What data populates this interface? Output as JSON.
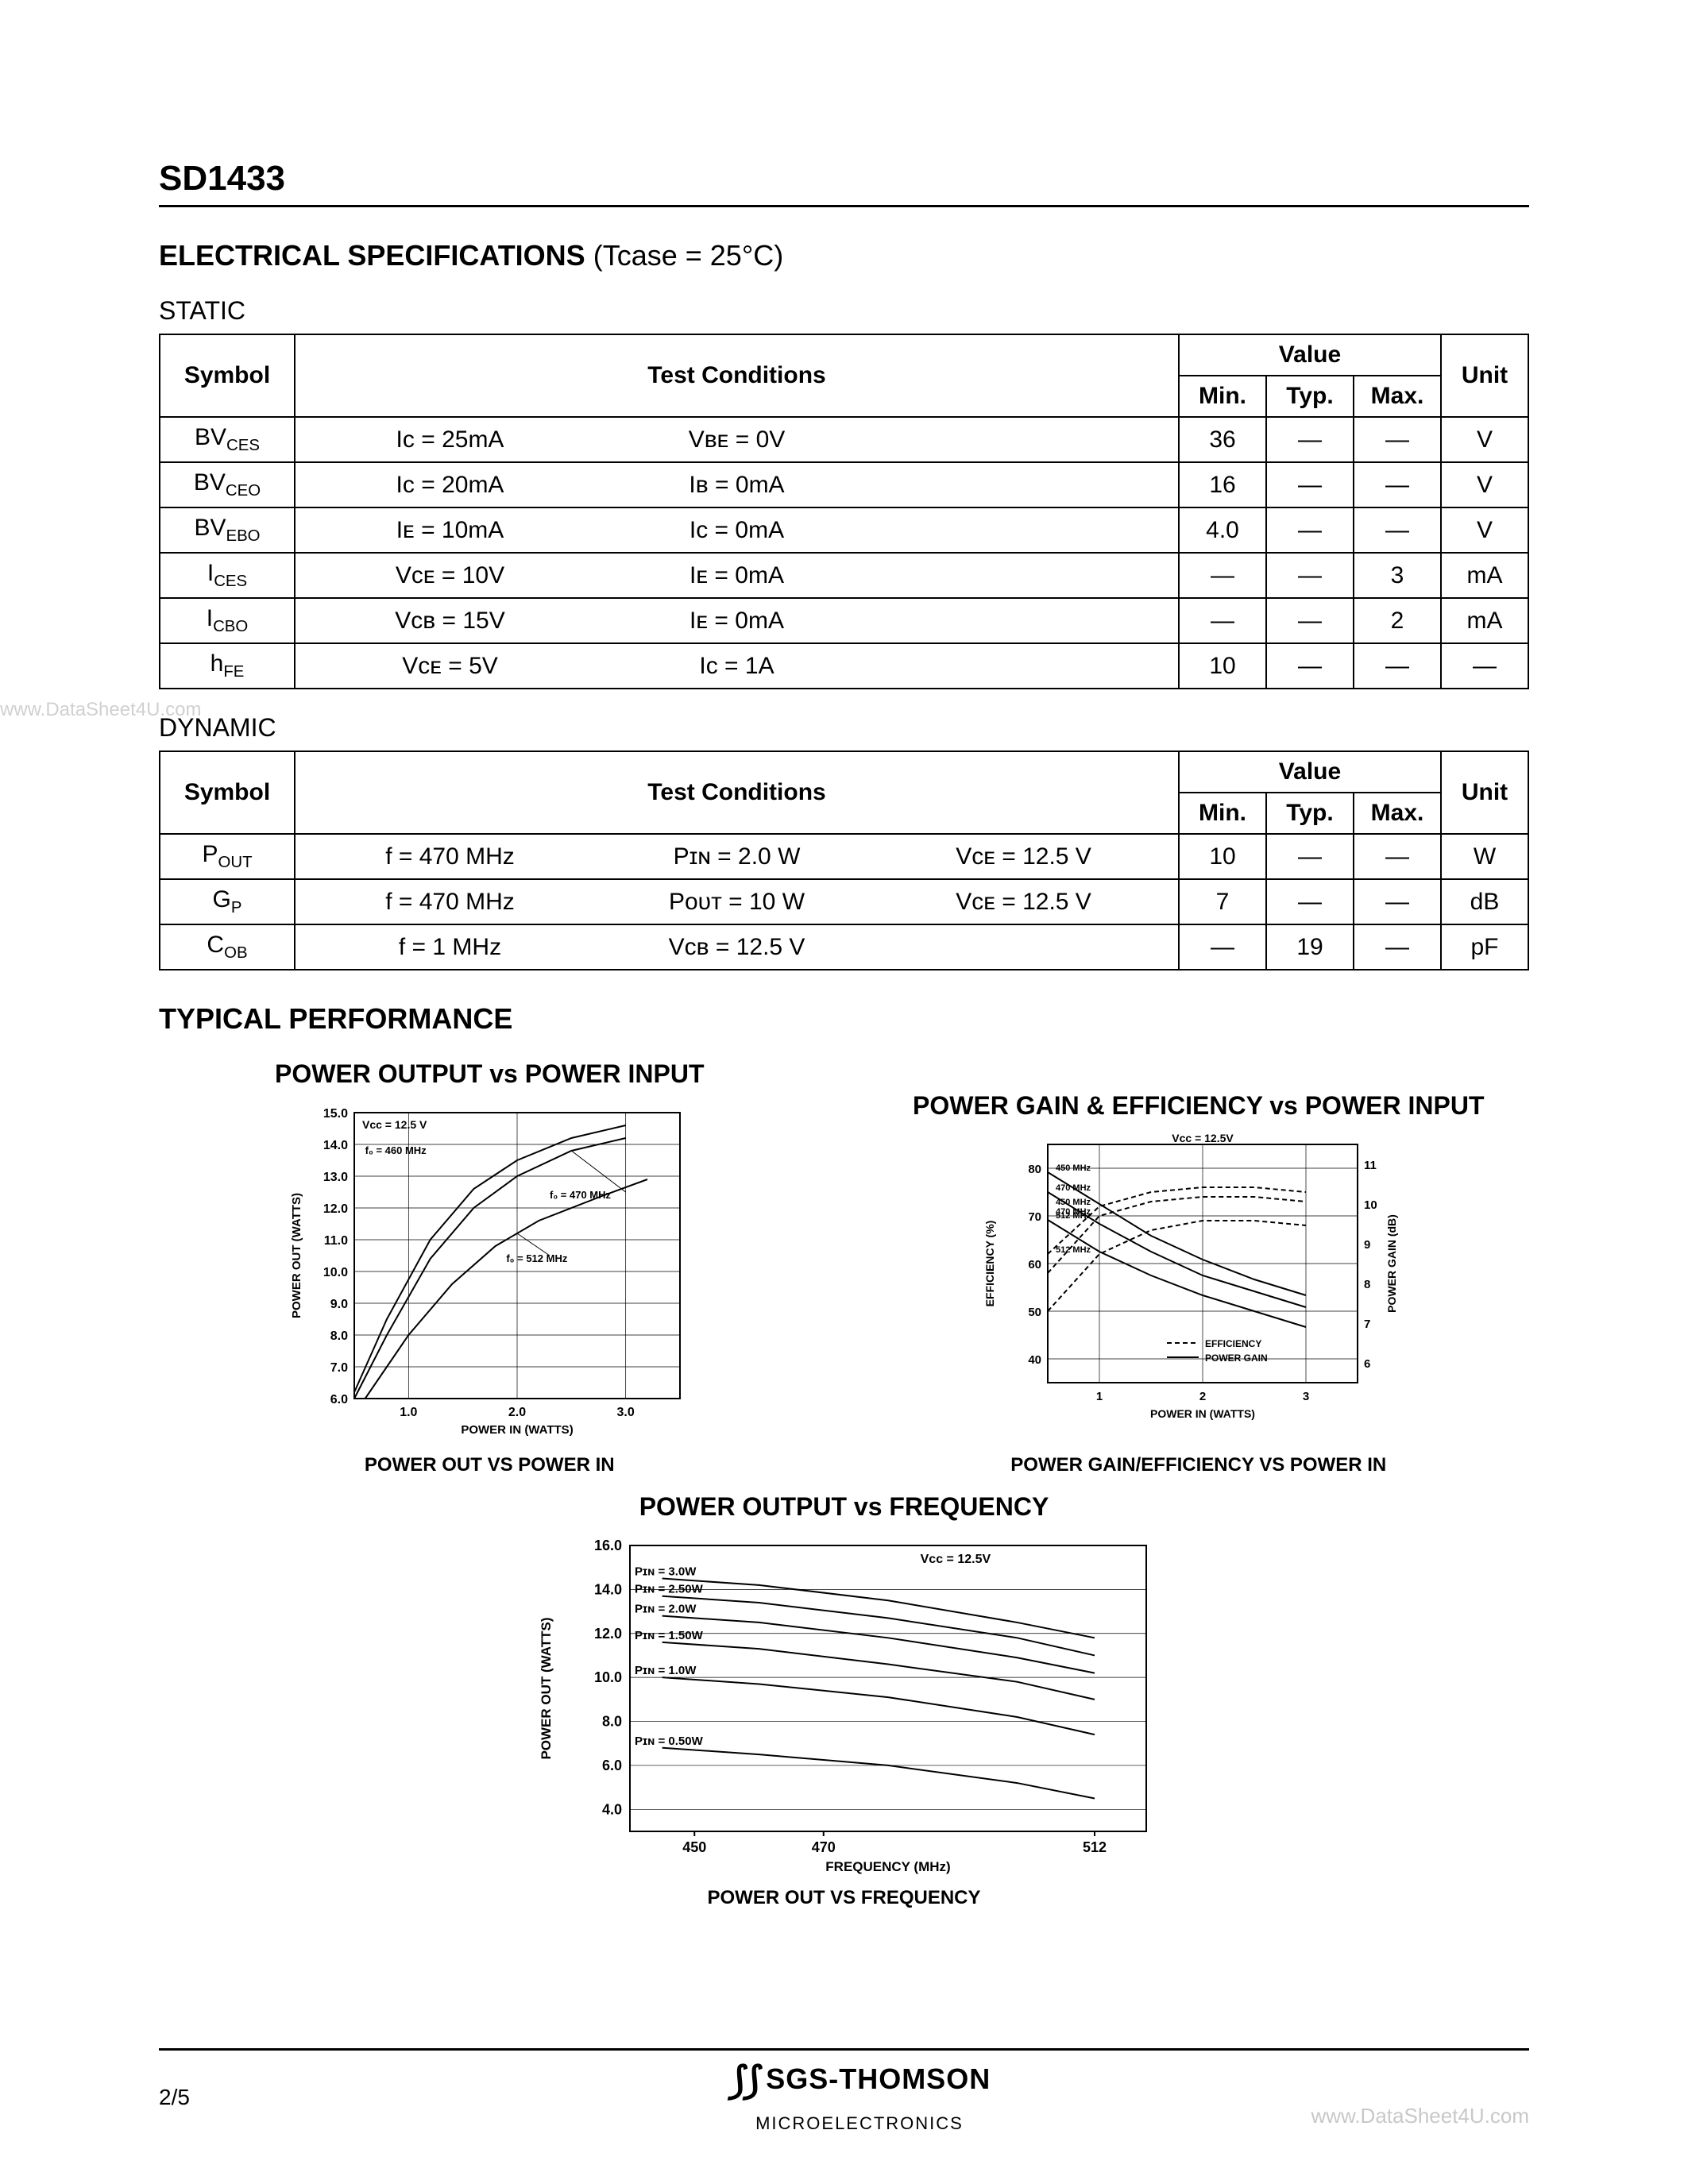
{
  "header": {
    "part": "SD1433"
  },
  "elec_spec": {
    "title_prefix": "ELECTRICAL SPECIFICATIONS",
    "title_cond": "(Tcase = 25°C)",
    "static_label": "STATIC",
    "dynamic_label": "DYNAMIC",
    "col_symbol": "Symbol",
    "col_test": "Test Conditions",
    "col_value": "Value",
    "col_min": "Min.",
    "col_typ": "Typ.",
    "col_max": "Max.",
    "col_unit": "Unit",
    "mdash": "—"
  },
  "static_rows": [
    {
      "sym_main": "BV",
      "sym_sub": "CES",
      "c1": "Iᴄ = 25mA",
      "c2": "Vʙᴇ = 0V",
      "c3": "",
      "min": "36",
      "typ": "—",
      "max": "—",
      "unit": "V"
    },
    {
      "sym_main": "BV",
      "sym_sub": "CEO",
      "c1": "Iᴄ = 20mA",
      "c2": "Iʙ = 0mA",
      "c3": "",
      "min": "16",
      "typ": "—",
      "max": "—",
      "unit": "V"
    },
    {
      "sym_main": "BV",
      "sym_sub": "EBO",
      "c1": "Iᴇ = 10mA",
      "c2": "Iᴄ = 0mA",
      "c3": "",
      "min": "4.0",
      "typ": "—",
      "max": "—",
      "unit": "V"
    },
    {
      "sym_main": "I",
      "sym_sub": "CES",
      "c1": "Vᴄᴇ = 10V",
      "c2": "Iᴇ = 0mA",
      "c3": "",
      "min": "—",
      "typ": "—",
      "max": "3",
      "unit": "mA"
    },
    {
      "sym_main": "I",
      "sym_sub": "CBO",
      "c1": "Vᴄʙ = 15V",
      "c2": "Iᴇ = 0mA",
      "c3": "",
      "min": "—",
      "typ": "—",
      "max": "2",
      "unit": "mA"
    },
    {
      "sym_main": "h",
      "sym_sub": "FE",
      "c1": "Vᴄᴇ = 5V",
      "c2": "Iᴄ = 1A",
      "c3": "",
      "min": "10",
      "typ": "—",
      "max": "—",
      "unit": "—"
    }
  ],
  "dynamic_rows": [
    {
      "sym_main": "P",
      "sym_sub": "OUT",
      "c1": "f = 470 MHz",
      "c2": "Pɪɴ = 2.0 W",
      "c3": "Vᴄᴇ = 12.5 V",
      "min": "10",
      "typ": "—",
      "max": "—",
      "unit": "W"
    },
    {
      "sym_main": "G",
      "sym_sub": "P",
      "c1": "f = 470 MHz",
      "c2": "Pᴏᴜᴛ = 10 W",
      "c3": "Vᴄᴇ = 12.5 V",
      "min": "7",
      "typ": "—",
      "max": "—",
      "unit": "dB"
    },
    {
      "sym_main": "C",
      "sym_sub": "OB",
      "c1": "f = 1 MHz",
      "c2": "Vᴄʙ = 12.5 V",
      "c3": "",
      "min": "—",
      "typ": "19",
      "max": "—",
      "unit": "pF"
    }
  ],
  "perf_section": "TYPICAL PERFORMANCE",
  "chart1": {
    "title": "POWER OUTPUT vs POWER INPUT",
    "caption": "POWER OUT VS POWER IN",
    "xlabel": "POWER IN (WATTS)",
    "ylabel": "POWER OUT (WATTS)",
    "vcc_label": "Vᴄᴄ = 12.5 V",
    "xticks": [
      "1.0",
      "2.0",
      "3.0"
    ],
    "yticks": [
      "6.0",
      "7.0",
      "8.0",
      "9.0",
      "10.0",
      "11.0",
      "12.0",
      "13.0",
      "14.0",
      "15.0"
    ],
    "xlim": [
      0.5,
      3.5
    ],
    "ylim": [
      6,
      15
    ],
    "background": "#ffffff",
    "grid_color": "#000000",
    "line_color": "#000000",
    "line_width": 2,
    "annotations": [
      "f₀ = 470 MHz",
      "f₀ = 460 MHz",
      "f₀ = 512 MHz"
    ],
    "series": [
      {
        "label": "460",
        "pts": [
          [
            0.5,
            6.2
          ],
          [
            0.8,
            8.5
          ],
          [
            1.2,
            11.0
          ],
          [
            1.6,
            12.6
          ],
          [
            2.0,
            13.5
          ],
          [
            2.5,
            14.2
          ],
          [
            3.0,
            14.6
          ]
        ]
      },
      {
        "label": "470",
        "pts": [
          [
            0.5,
            6.0
          ],
          [
            0.8,
            8.0
          ],
          [
            1.2,
            10.4
          ],
          [
            1.6,
            12.0
          ],
          [
            2.0,
            13.0
          ],
          [
            2.5,
            13.8
          ],
          [
            3.0,
            14.2
          ]
        ]
      },
      {
        "label": "512",
        "pts": [
          [
            0.6,
            6.0
          ],
          [
            1.0,
            8.0
          ],
          [
            1.4,
            9.6
          ],
          [
            1.8,
            10.8
          ],
          [
            2.2,
            11.6
          ],
          [
            2.8,
            12.4
          ],
          [
            3.2,
            12.9
          ]
        ]
      }
    ]
  },
  "chart2": {
    "title": "POWER GAIN & EFFICIENCY vs POWER INPUT",
    "caption": "POWER GAIN/EFFICIENCY VS POWER IN",
    "xlabel": "POWER IN (WATTS)",
    "ylabel_left": "EFFICIENCY (%)",
    "ylabel_right": "POWER GAIN (dB)",
    "vcc_label": "Vᴄᴄ = 12.5V",
    "xticks": [
      "1",
      "2",
      "3"
    ],
    "yticks_left": [
      "40",
      "50",
      "60",
      "70",
      "80"
    ],
    "yticks_right": [
      "6",
      "7",
      "8",
      "9",
      "10",
      "11"
    ],
    "xlim": [
      0.5,
      3.5
    ],
    "ylim_left": [
      35,
      85
    ],
    "ylim_right": [
      5.5,
      11.5
    ],
    "background": "#ffffff",
    "grid_color": "#000000",
    "line_color": "#000000",
    "legend": [
      "EFFICIENCY",
      "POWER GAIN"
    ],
    "series_annotations": [
      "450 MHz",
      "470 MHz",
      "512 MHz",
      "450 MHz",
      "470 MHz",
      "512 MHz"
    ],
    "eff_series": [
      {
        "pts": [
          [
            0.5,
            62
          ],
          [
            1.0,
            72
          ],
          [
            1.5,
            75
          ],
          [
            2.0,
            76
          ],
          [
            2.5,
            76
          ],
          [
            3.0,
            75
          ]
        ],
        "dash": true
      },
      {
        "pts": [
          [
            0.5,
            58
          ],
          [
            1.0,
            70
          ],
          [
            1.5,
            73
          ],
          [
            2.0,
            74
          ],
          [
            2.5,
            74
          ],
          [
            3.0,
            73
          ]
        ],
        "dash": true
      },
      {
        "pts": [
          [
            0.5,
            50
          ],
          [
            1.0,
            62
          ],
          [
            1.5,
            67
          ],
          [
            2.0,
            69
          ],
          [
            2.5,
            69
          ],
          [
            3.0,
            68
          ]
        ],
        "dash": true
      }
    ],
    "gain_series": [
      {
        "pts": [
          [
            0.5,
            10.8
          ],
          [
            1.0,
            10.0
          ],
          [
            1.5,
            9.2
          ],
          [
            2.0,
            8.6
          ],
          [
            2.5,
            8.1
          ],
          [
            3.0,
            7.7
          ]
        ]
      },
      {
        "pts": [
          [
            0.5,
            10.3
          ],
          [
            1.0,
            9.5
          ],
          [
            1.5,
            8.8
          ],
          [
            2.0,
            8.2
          ],
          [
            2.5,
            7.8
          ],
          [
            3.0,
            7.4
          ]
        ]
      },
      {
        "pts": [
          [
            0.5,
            9.6
          ],
          [
            1.0,
            8.8
          ],
          [
            1.5,
            8.2
          ],
          [
            2.0,
            7.7
          ],
          [
            2.5,
            7.3
          ],
          [
            3.0,
            6.9
          ]
        ]
      }
    ]
  },
  "chart3": {
    "title": "POWER OUTPUT vs FREQUENCY",
    "caption": "POWER OUT VS FREQUENCY",
    "xlabel": "FREQUENCY (MHz)",
    "ylabel": "POWER OUT (WATTS)",
    "vcc_label": "Vᴄᴄ = 12.5V",
    "xticks": [
      "450",
      "470",
      "512"
    ],
    "yticks": [
      "4.0",
      "6.0",
      "8.0",
      "10.0",
      "12.0",
      "14.0",
      "16.0"
    ],
    "xlim": [
      440,
      520
    ],
    "ylim": [
      3,
      16
    ],
    "background": "#ffffff",
    "grid_color": "#000000",
    "line_color": "#000000",
    "series": [
      {
        "label": "Pɪɴ = 3.0W",
        "pts": [
          [
            445,
            14.5
          ],
          [
            460,
            14.2
          ],
          [
            480,
            13.5
          ],
          [
            500,
            12.5
          ],
          [
            512,
            11.8
          ]
        ]
      },
      {
        "label": "Pɪɴ = 2.50W",
        "pts": [
          [
            445,
            13.7
          ],
          [
            460,
            13.4
          ],
          [
            480,
            12.7
          ],
          [
            500,
            11.8
          ],
          [
            512,
            11.0
          ]
        ]
      },
      {
        "label": "Pɪɴ = 2.0W",
        "pts": [
          [
            445,
            12.8
          ],
          [
            460,
            12.5
          ],
          [
            480,
            11.8
          ],
          [
            500,
            10.9
          ],
          [
            512,
            10.2
          ]
        ]
      },
      {
        "label": "Pɪɴ = 1.50W",
        "pts": [
          [
            445,
            11.6
          ],
          [
            460,
            11.3
          ],
          [
            480,
            10.6
          ],
          [
            500,
            9.8
          ],
          [
            512,
            9.0
          ]
        ]
      },
      {
        "label": "Pɪɴ = 1.0W",
        "pts": [
          [
            445,
            10.0
          ],
          [
            460,
            9.7
          ],
          [
            480,
            9.1
          ],
          [
            500,
            8.2
          ],
          [
            512,
            7.4
          ]
        ]
      },
      {
        "label": "Pɪɴ = 0.50W",
        "pts": [
          [
            445,
            6.8
          ],
          [
            460,
            6.5
          ],
          [
            480,
            6.0
          ],
          [
            500,
            5.2
          ],
          [
            512,
            4.5
          ]
        ]
      }
    ]
  },
  "footer": {
    "page": "2/5",
    "logo_top": "SGS-THOMSON",
    "logo_bot": "MICROELECTRONICS"
  },
  "watermarks": {
    "left": "www.DataSheet4U.com",
    "right": "www.DataSheet4U.com"
  }
}
